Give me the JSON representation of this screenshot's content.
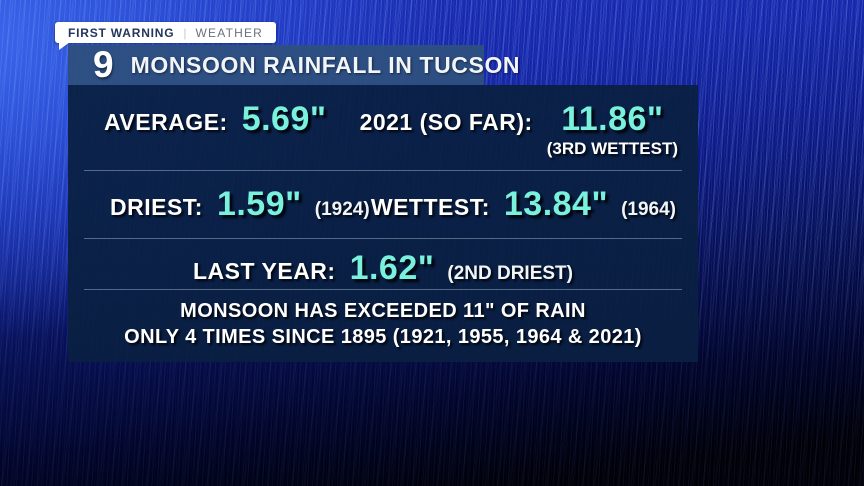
{
  "badge": {
    "primary": "FIRST WARNING",
    "separator": "|",
    "secondary": "WEATHER"
  },
  "title_bar": {
    "logo": "9",
    "title": "MONSOON RAINFALL IN TUCSON"
  },
  "stats": {
    "average": {
      "label": "AVERAGE:",
      "value": "5.69\""
    },
    "current": {
      "label": "2021 (SO FAR):",
      "value": "11.86\"",
      "note": "(3RD WETTEST)"
    },
    "driest": {
      "label": "DRIEST:",
      "value": "1.59\"",
      "note": "(1924)"
    },
    "wettest": {
      "label": "WETTEST:",
      "value": "13.84\"",
      "note": "(1964)"
    },
    "last_year": {
      "label": "LAST YEAR:",
      "value": "1.62\"",
      "note": "(2ND DRIEST)"
    }
  },
  "footer": {
    "line1": "MONSOON HAS EXCEEDED 11\" OF RAIN",
    "line2": "ONLY 4 TIMES SINCE 1895 (1921, 1955, 1964 & 2021)"
  },
  "colors": {
    "accent_cyan": "#7af1dc",
    "panel_navy": "#0a2042",
    "title_bar_blue": "#2d4f80",
    "background_blue": "#1626a8",
    "badge_primary_text": "#22355e",
    "badge_secondary_text": "#68727f"
  },
  "chart_data": {
    "type": "table",
    "title": "MONSOON RAINFALL IN TUCSON",
    "unit": "inches",
    "columns": [
      "statistic",
      "rainfall_inches",
      "note"
    ],
    "rows": [
      {
        "statistic": "AVERAGE",
        "rainfall_inches": 5.69,
        "note": ""
      },
      {
        "statistic": "2021 (SO FAR)",
        "rainfall_inches": 11.86,
        "note": "3RD WETTEST"
      },
      {
        "statistic": "DRIEST",
        "rainfall_inches": 1.59,
        "note": "1924"
      },
      {
        "statistic": "WETTEST",
        "rainfall_inches": 13.84,
        "note": "1964"
      },
      {
        "statistic": "LAST YEAR",
        "rainfall_inches": 1.62,
        "note": "2ND DRIEST"
      }
    ],
    "annotation": "MONSOON HAS EXCEEDED 11\" OF RAIN ONLY 4 TIMES SINCE 1895 (1921, 1955, 1964 & 2021)"
  }
}
